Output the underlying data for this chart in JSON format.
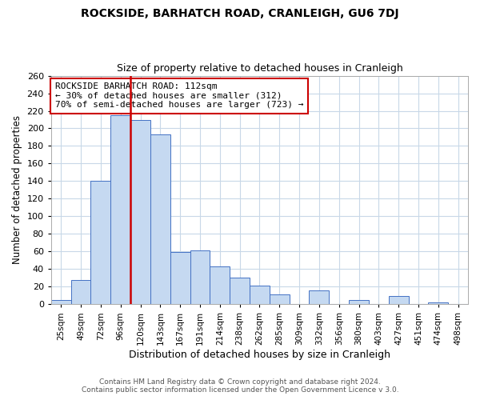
{
  "title": "ROCKSIDE, BARHATCH ROAD, CRANLEIGH, GU6 7DJ",
  "subtitle": "Size of property relative to detached houses in Cranleigh",
  "xlabel": "Distribution of detached houses by size in Cranleigh",
  "ylabel": "Number of detached properties",
  "bar_labels": [
    "25sqm",
    "49sqm",
    "72sqm",
    "96sqm",
    "120sqm",
    "143sqm",
    "167sqm",
    "191sqm",
    "214sqm",
    "238sqm",
    "262sqm",
    "285sqm",
    "309sqm",
    "332sqm",
    "356sqm",
    "380sqm",
    "403sqm",
    "427sqm",
    "451sqm",
    "474sqm",
    "498sqm"
  ],
  "bar_values": [
    5,
    28,
    140,
    215,
    210,
    193,
    59,
    61,
    43,
    30,
    21,
    11,
    0,
    16,
    0,
    5,
    0,
    9,
    0,
    2,
    0
  ],
  "bar_color": "#c5d9f1",
  "bar_edge_color": "#4472c4",
  "ylim": [
    0,
    260
  ],
  "yticks": [
    0,
    20,
    40,
    60,
    80,
    100,
    120,
    140,
    160,
    180,
    200,
    220,
    240,
    260
  ],
  "property_line_color": "#cc0000",
  "annotation_title": "ROCKSIDE BARHATCH ROAD: 112sqm",
  "annotation_line1": "← 30% of detached houses are smaller (312)",
  "annotation_line2": "70% of semi-detached houses are larger (723) →",
  "annotation_box_color": "#cc0000",
  "footer1": "Contains HM Land Registry data © Crown copyright and database right 2024.",
  "footer2": "Contains public sector information licensed under the Open Government Licence v 3.0.",
  "background_color": "#ffffff",
  "grid_color": "#c8d8e8"
}
